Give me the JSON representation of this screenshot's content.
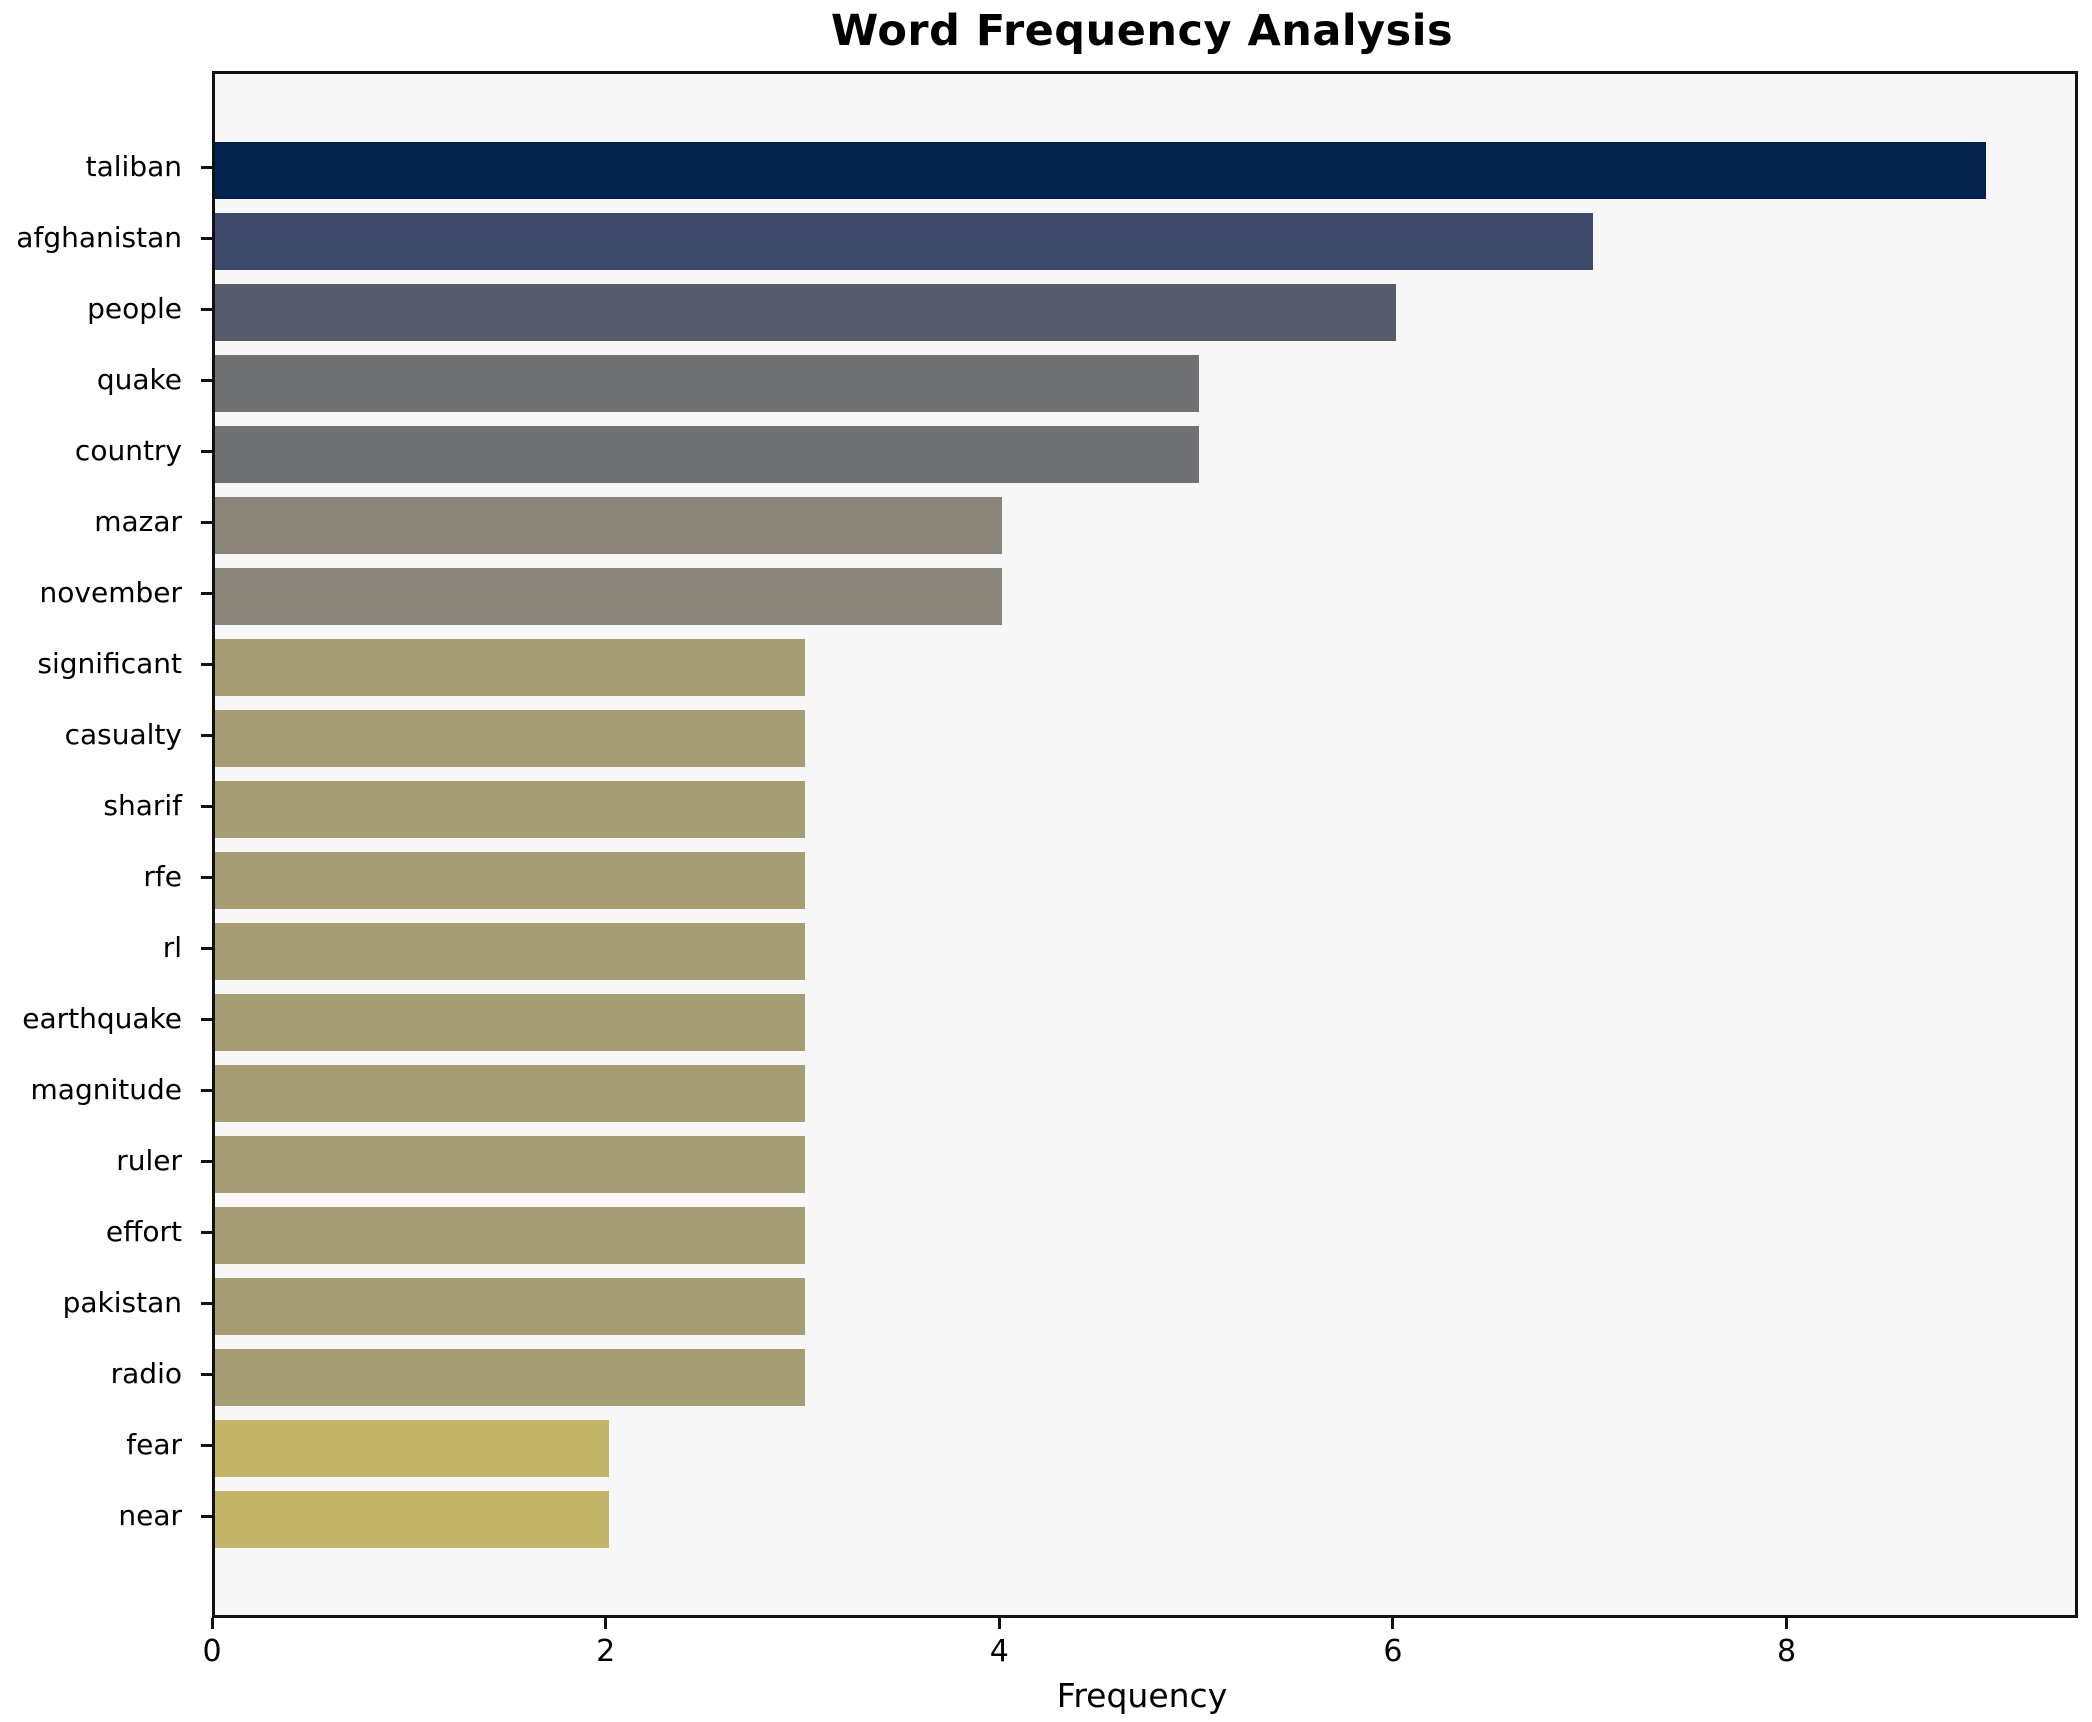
{
  "chart_data": {
    "type": "bar",
    "orientation": "horizontal",
    "title": "Word Frequency Analysis",
    "xlabel": "Frequency",
    "ylabel": "",
    "categories": [
      "taliban",
      "afghanistan",
      "people",
      "quake",
      "country",
      "mazar",
      "november",
      "significant",
      "casualty",
      "sharif",
      "rfe",
      "rl",
      "earthquake",
      "magnitude",
      "ruler",
      "effort",
      "pakistan",
      "radio",
      "fear",
      "near"
    ],
    "values": [
      9,
      7,
      6,
      5,
      5,
      4,
      4,
      3,
      3,
      3,
      3,
      3,
      3,
      3,
      3,
      3,
      3,
      3,
      2,
      2
    ],
    "colors": [
      "#03234e",
      "#3c4a6c",
      "#565c6c",
      "#707173",
      "#707173",
      "#8a8578",
      "#8a8578",
      "#a69d72",
      "#a69d72",
      "#a69d72",
      "#a69d72",
      "#a69d72",
      "#a69d72",
      "#a69d72",
      "#a69d72",
      "#a69d72",
      "#a69d72",
      "#a69d72",
      "#c4b466",
      "#c4b466"
    ],
    "xlim": [
      0,
      9.45
    ],
    "xticks": [
      0,
      2,
      4,
      6,
      8
    ],
    "grid": false,
    "legend": "none",
    "plot_background": "#f7f7f7",
    "figure_background": "#ffffff"
  }
}
